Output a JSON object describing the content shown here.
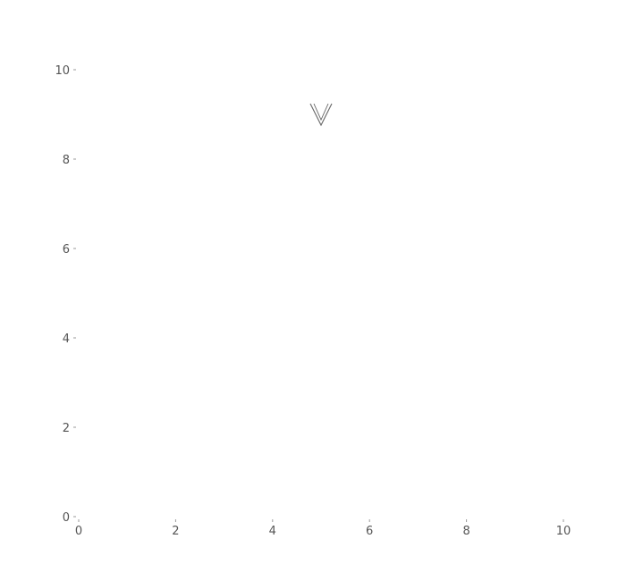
{
  "chart_data": {
    "type": "scatter",
    "title": "",
    "xlabel": "",
    "ylabel": "",
    "xlim": [
      0,
      10
    ],
    "ylim": [
      0,
      10
    ],
    "x_ticks": [
      "0",
      "2",
      "4",
      "6",
      "8",
      "10"
    ],
    "y_ticks": [
      "0",
      "2",
      "4",
      "6",
      "8",
      "10"
    ],
    "grid": false,
    "series": [
      {
        "marker": "v-shape",
        "color": "#666666",
        "points": [
          {
            "x": 5,
            "y": 9
          }
        ]
      }
    ]
  }
}
